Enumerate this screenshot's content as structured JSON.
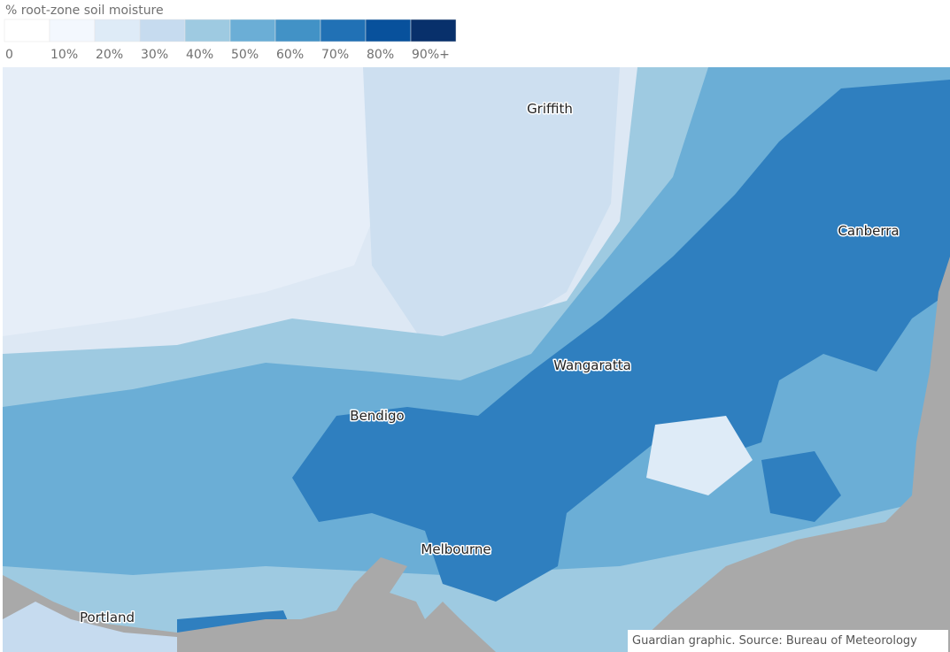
{
  "legend": {
    "title": "% root-zone soil moisture",
    "items": [
      {
        "label": "0",
        "color": "#ffffff"
      },
      {
        "label": "10%",
        "color": "#f3f8fe"
      },
      {
        "label": "20%",
        "color": "#deebf7"
      },
      {
        "label": "30%",
        "color": "#c6dbef"
      },
      {
        "label": "40%",
        "color": "#9ecae1"
      },
      {
        "label": "50%",
        "color": "#6baed6"
      },
      {
        "label": "60%",
        "color": "#4292c6"
      },
      {
        "label": "70%",
        "color": "#2171b5"
      },
      {
        "label": "80%",
        "color": "#08519c"
      },
      {
        "label": "90%+",
        "color": "#08306b"
      }
    ]
  },
  "map": {
    "cities": [
      "Griffith",
      "Canberra",
      "Wangaratta",
      "Bendigo",
      "Melbourne",
      "Portland"
    ]
  },
  "source": "Guardian graphic. Source: Bureau of Meteorology"
}
